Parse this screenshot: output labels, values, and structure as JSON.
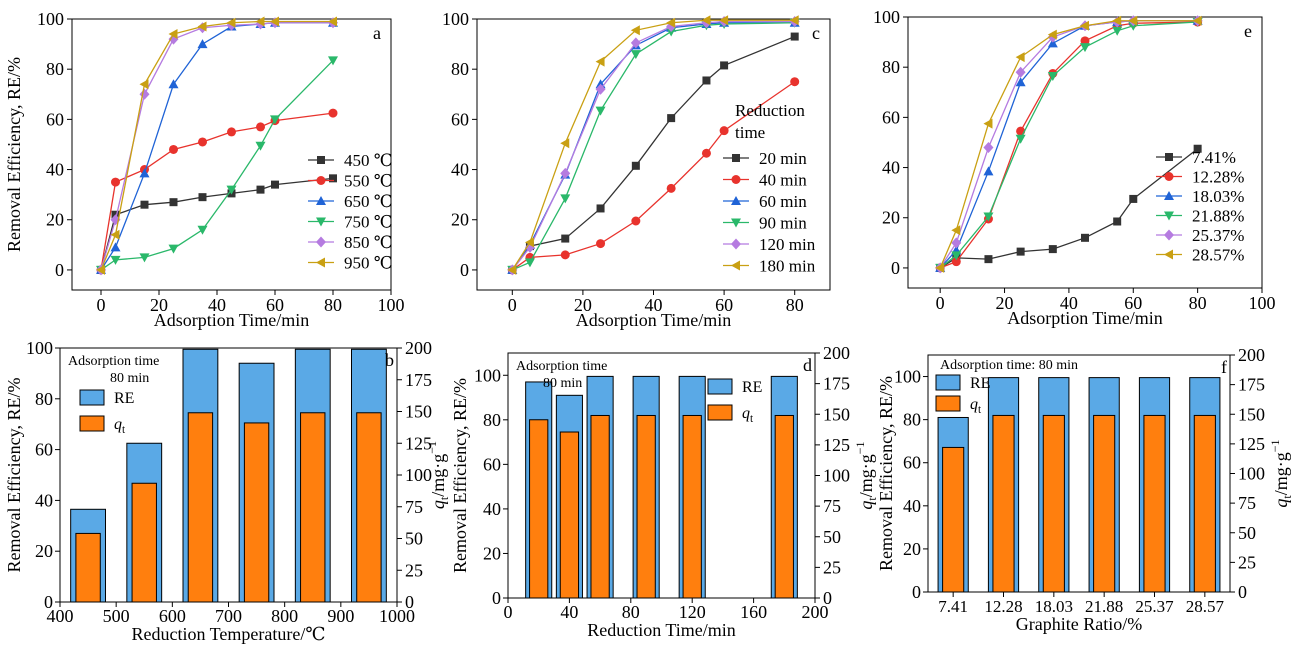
{
  "colors": {
    "black": "#000000",
    "series_palette": [
      "#333333",
      "#e8332d",
      "#1f63d6",
      "#2ab86a",
      "#b57be0",
      "#c9a013"
    ],
    "marker_palette": [
      "square",
      "circle",
      "triangle-up",
      "triangle-down",
      "diamond",
      "triangle-left"
    ],
    "bar_re": "#5aa9e6",
    "bar_q": "#ff7f0e"
  },
  "chart_data": [
    {
      "panel": "a",
      "type": "line",
      "xlabel": "Adsorption Time/min",
      "ylabel": "Removal Efficiency, RE/%",
      "xlim": [
        -10,
        100
      ],
      "ylim": [
        -8,
        100
      ],
      "xticks": [
        0,
        20,
        40,
        60,
        80,
        100
      ],
      "yticks": [
        0,
        20,
        40,
        60,
        80,
        100
      ],
      "legend_placement": "right",
      "series": [
        {
          "name": "450 ℃",
          "x": [
            0,
            5,
            15,
            25,
            35,
            45,
            55,
            60,
            80
          ],
          "y": [
            0,
            22,
            26,
            27,
            29,
            30.5,
            32,
            34,
            36.5
          ]
        },
        {
          "name": "550 ℃",
          "x": [
            0,
            5,
            15,
            25,
            35,
            45,
            55,
            60,
            80
          ],
          "y": [
            0,
            35,
            40,
            48,
            51,
            55,
            57,
            59.5,
            62.5
          ]
        },
        {
          "name": "650 ℃",
          "x": [
            0,
            5,
            15,
            25,
            35,
            45,
            55,
            60,
            80
          ],
          "y": [
            0,
            9,
            38.5,
            74,
            90,
            97,
            98,
            98.5,
            98.5
          ]
        },
        {
          "name": "750 ℃",
          "x": [
            0,
            5,
            15,
            25,
            35,
            45,
            55,
            60,
            80
          ],
          "y": [
            0,
            4,
            5,
            8.5,
            16,
            32,
            49.5,
            60,
            83.5
          ]
        },
        {
          "name": "850 ℃",
          "x": [
            0,
            5,
            15,
            25,
            35,
            45,
            55,
            60,
            80
          ],
          "y": [
            0,
            20,
            70,
            92,
            96.5,
            97.5,
            98,
            98.5,
            98.5
          ]
        },
        {
          "name": "950 ℃",
          "x": [
            0,
            5,
            15,
            25,
            35,
            45,
            55,
            60,
            80
          ],
          "y": [
            0,
            14,
            74,
            94,
            97,
            98.5,
            99,
            99,
            99
          ]
        }
      ]
    },
    {
      "panel": "c",
      "type": "line",
      "xlabel": "Adsorption Time/min",
      "ylabel": "",
      "xlim": [
        -10,
        90
      ],
      "ylim": [
        -8,
        100
      ],
      "xticks": [
        0,
        20,
        40,
        60,
        80
      ],
      "yticks": [
        0,
        20,
        40,
        60,
        80,
        100
      ],
      "legend_title": [
        "Reduction",
        "time"
      ],
      "legend_placement": "right",
      "series": [
        {
          "name": "20 min",
          "x": [
            0,
            5,
            15,
            25,
            35,
            45,
            55,
            60,
            80
          ],
          "y": [
            0,
            9.5,
            12.5,
            24.5,
            41.5,
            60.5,
            75.5,
            81.5,
            93
          ]
        },
        {
          "name": "40 min",
          "x": [
            0,
            5,
            15,
            25,
            35,
            45,
            55,
            60,
            80
          ],
          "y": [
            0,
            5,
            6,
            10.5,
            19.5,
            32.5,
            46.5,
            55.5,
            75
          ]
        },
        {
          "name": "60 min",
          "x": [
            0,
            5,
            15,
            25,
            35,
            45,
            55,
            60,
            80
          ],
          "y": [
            0,
            10,
            38,
            74,
            89.5,
            96.5,
            98,
            98.5,
            98.5
          ]
        },
        {
          "name": "90 min",
          "x": [
            0,
            5,
            15,
            25,
            35,
            45,
            55,
            60,
            80
          ],
          "y": [
            0,
            3,
            28.5,
            63.5,
            86,
            95,
            97.5,
            98,
            98.5
          ]
        },
        {
          "name": "120 min",
          "x": [
            0,
            5,
            15,
            25,
            35,
            45,
            55,
            60,
            80
          ],
          "y": [
            0,
            9,
            38.5,
            72,
            90.5,
            97,
            98.5,
            99,
            99
          ]
        },
        {
          "name": "180 min",
          "x": [
            0,
            5,
            15,
            25,
            35,
            45,
            55,
            60,
            80
          ],
          "y": [
            0,
            11,
            50.5,
            83,
            95.5,
            98.5,
            99.5,
            99.5,
            99.5
          ]
        }
      ]
    },
    {
      "panel": "e",
      "type": "line",
      "xlabel": "Adsorption Time/min",
      "ylabel": "",
      "xlim": [
        -10,
        100
      ],
      "ylim": [
        -8,
        100
      ],
      "xticks": [
        0,
        20,
        40,
        60,
        80,
        100
      ],
      "yticks": [
        0,
        20,
        40,
        60,
        80,
        100
      ],
      "legend_placement": "right",
      "series": [
        {
          "name": "7.41%",
          "x": [
            0,
            5,
            15,
            25,
            35,
            45,
            55,
            60,
            80
          ],
          "y": [
            0,
            4,
            3.5,
            6.5,
            7.5,
            12,
            18.5,
            27.5,
            47.5
          ]
        },
        {
          "name": "12.28%",
          "x": [
            0,
            5,
            15,
            25,
            35,
            45,
            55,
            60,
            80
          ],
          "y": [
            0,
            2.5,
            19.5,
            54.5,
            77.5,
            90.5,
            96.5,
            97.5,
            98
          ]
        },
        {
          "name": "18.03%",
          "x": [
            0,
            5,
            15,
            25,
            35,
            45,
            55,
            60,
            80
          ],
          "y": [
            0,
            7,
            38.5,
            74,
            89.5,
            96.5,
            98,
            98.5,
            98.5
          ]
        },
        {
          "name": "21.88%",
          "x": [
            0,
            5,
            15,
            25,
            35,
            45,
            55,
            60,
            80
          ],
          "y": [
            0,
            5,
            20.5,
            51.5,
            76.5,
            88,
            94.5,
            96.5,
            98
          ]
        },
        {
          "name": "25.37%",
          "x": [
            0,
            5,
            15,
            25,
            35,
            45,
            55,
            60,
            80
          ],
          "y": [
            0,
            10,
            48,
            78,
            92,
            96.5,
            98,
            98.5,
            98.5
          ]
        },
        {
          "name": "28.57%",
          "x": [
            0,
            5,
            15,
            25,
            35,
            45,
            55,
            60,
            80
          ],
          "y": [
            0,
            15,
            57.5,
            84,
            93,
            96.5,
            98.5,
            98.5,
            98.5
          ]
        }
      ]
    },
    {
      "panel": "b",
      "type": "bar",
      "xlabel": "Reduction Temperature/℃",
      "ylabel": "Removal Efficiency, RE/%",
      "y2label": "qt/mg·g⁻¹",
      "xlim": [
        400,
        1000
      ],
      "ylim": [
        0,
        100
      ],
      "y2lim": [
        0,
        200
      ],
      "xticks": [
        400,
        500,
        600,
        700,
        800,
        900,
        1000
      ],
      "yticks": [
        0,
        20,
        40,
        60,
        80,
        100
      ],
      "y2ticks": [
        0,
        25,
        50,
        75,
        100,
        125,
        150,
        175,
        200
      ],
      "annotation": [
        "Adsorption time",
        "80 min"
      ],
      "legend": [
        "RE",
        "q_t"
      ],
      "x": [
        450,
        550,
        650,
        750,
        850,
        950
      ],
      "re": [
        36.5,
        62.5,
        99.5,
        94,
        99.5,
        99.5
      ],
      "qt": [
        54,
        93.5,
        149,
        141,
        149,
        149
      ]
    },
    {
      "panel": "d",
      "type": "bar",
      "xlabel": "Reduction Time/min",
      "ylabel": "Removal Efficiency, RE/%",
      "y2label": "qt/mg·g⁻¹",
      "xlim": [
        0,
        200
      ],
      "ylim": [
        0,
        110
      ],
      "y2lim": [
        0,
        200
      ],
      "xticks": [
        0,
        40,
        80,
        120,
        160,
        200
      ],
      "yticks": [
        0,
        20,
        40,
        60,
        80,
        100
      ],
      "y2ticks": [
        0,
        25,
        50,
        75,
        100,
        125,
        150,
        175,
        200
      ],
      "annotation": [
        "Adsorption time",
        "80 min"
      ],
      "legend": [
        "RE",
        "q_t"
      ],
      "x": [
        20,
        40,
        60,
        90,
        120,
        180
      ],
      "re": [
        97,
        91,
        99.5,
        99.5,
        99.5,
        99.5
      ],
      "qt": [
        145.5,
        135.5,
        149,
        149,
        149,
        149
      ]
    },
    {
      "panel": "f",
      "type": "bar",
      "xlabel": "Graphite Ratio/%",
      "ylabel": "Removal Efficiency, RE/%",
      "y2label": "qt/mg·g⁻¹",
      "ylim": [
        0,
        110
      ],
      "y2lim": [
        0,
        200
      ],
      "yticks": [
        0,
        20,
        40,
        60,
        80,
        100
      ],
      "y2ticks": [
        0,
        25,
        50,
        75,
        100,
        125,
        150,
        175,
        200
      ],
      "annotation": [
        "Adsorption time: 80 min"
      ],
      "legend": [
        "RE",
        "q_t"
      ],
      "categories": [
        "7.41",
        "12.28",
        "18.03",
        "21.88",
        "25.37",
        "28.57"
      ],
      "re": [
        81,
        99.5,
        99.5,
        99.5,
        99.5,
        99.5
      ],
      "qt": [
        122,
        149,
        149,
        149,
        149,
        149
      ]
    }
  ]
}
